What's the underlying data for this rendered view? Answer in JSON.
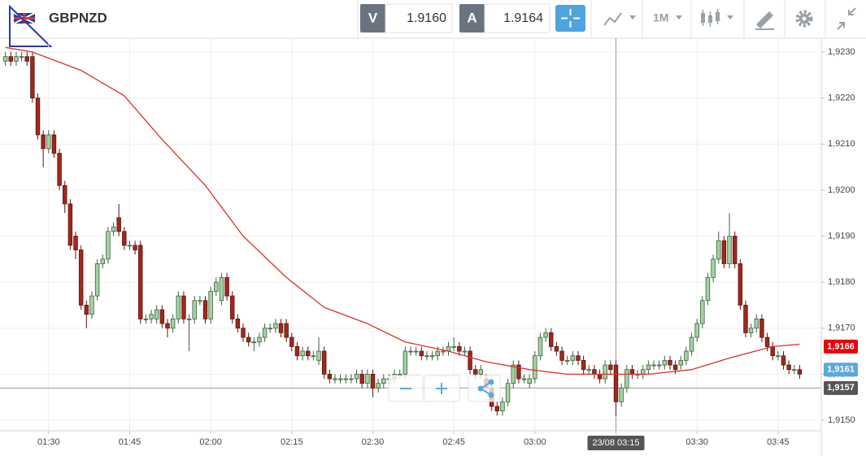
{
  "toolbar": {
    "symbol": "GBPNZD",
    "bid_label": "V",
    "bid": "1.9160",
    "ask_label": "A",
    "ask": "1.9164",
    "timeframe": "1M"
  },
  "chart_data": {
    "type": "candlestick",
    "up_color": "#a3d3a3",
    "down_color": "#a0281c",
    "xlim": [
      -1,
      151
    ],
    "ylim": [
      1.91477,
      1.9233
    ],
    "grid": true,
    "yticks": [
      {
        "value": 1.915,
        "label": "1,9150"
      },
      {
        "value": 1.916,
        "label": "1,9160"
      },
      {
        "value": 1.917,
        "label": "1,9170"
      },
      {
        "value": 1.918,
        "label": "1,9180"
      },
      {
        "value": 1.919,
        "label": "1,9190"
      },
      {
        "value": 1.92,
        "label": "1,9200"
      },
      {
        "value": 1.921,
        "label": "1,9210"
      },
      {
        "value": 1.922,
        "label": "1,9220"
      },
      {
        "value": 1.923,
        "label": "1,9230"
      }
    ],
    "xticks": [
      {
        "value": 8,
        "label": "01:30"
      },
      {
        "value": 23,
        "label": "01:45"
      },
      {
        "value": 38,
        "label": "02:00"
      },
      {
        "value": 53,
        "label": "02:15"
      },
      {
        "value": 68,
        "label": "02:30"
      },
      {
        "value": 83,
        "label": "02:45"
      },
      {
        "value": 98,
        "label": "03:00"
      },
      {
        "value": 113,
        "label": "03:15"
      },
      {
        "value": 128,
        "label": "03:30"
      },
      {
        "value": 143,
        "label": "03:45"
      }
    ],
    "open": [
      1.9228,
      1.9229,
      1.9228,
      1.9229,
      1.9229,
      1.9229,
      1.922,
      1.9212,
      1.9209,
      1.9212,
      1.9208,
      1.9201,
      1.9197,
      1.919,
      1.9187,
      1.9175,
      1.9173,
      1.9177,
      1.9184,
      1.9185,
      1.9191,
      1.9194,
      1.9191,
      1.9188,
      1.9188,
      1.9188,
      1.9172,
      1.9172,
      1.9172,
      1.9174,
      1.9171,
      1.917,
      1.9172,
      1.9177,
      1.9172,
      1.9172,
      1.9176,
      1.9176,
      1.9172,
      1.9178,
      1.9176,
      1.9181,
      1.9177,
      1.9172,
      1.917,
      1.9168,
      1.9167,
      1.9167,
      1.9168,
      1.917,
      1.917,
      1.9171,
      1.9171,
      1.9168,
      1.9166,
      1.9164,
      1.9165,
      1.9164,
      1.9163,
      1.9165,
      1.916,
      1.9159,
      1.9159,
      1.9159,
      1.9159,
      1.9159,
      1.916,
      1.9158,
      1.916,
      1.9157,
      1.9158,
      1.9159,
      1.9159,
      1.916,
      1.916,
      1.9165,
      1.9165,
      1.9165,
      1.9164,
      1.9164,
      1.9164,
      1.9165,
      1.9165,
      1.9166,
      1.9166,
      1.9165,
      1.9165,
      1.9161,
      1.916,
      1.9159,
      1.9157,
      1.9153,
      1.9152,
      1.9154,
      1.9158,
      1.9162,
      1.9159,
      1.9158,
      1.9159,
      1.9164,
      1.9168,
      1.9169,
      1.9166,
      1.9165,
      1.9163,
      1.9163,
      1.9164,
      1.9163,
      1.9161,
      1.9161,
      1.916,
      1.9159,
      1.9162,
      1.9162,
      1.9154,
      1.9157,
      1.9161,
      1.916,
      1.916,
      1.9161,
      1.9162,
      1.9162,
      1.9162,
      1.9163,
      1.9162,
      1.9162,
      1.9163,
      1.9165,
      1.9168,
      1.9171,
      1.9176,
      1.9181,
      1.9185,
      1.9189,
      1.9184,
      1.919,
      1.9184,
      1.9175,
      1.9169,
      1.917,
      1.9172,
      1.9168,
      1.9166,
      1.9164,
      1.9164,
      1.9162,
      1.9161,
      1.9161
    ],
    "high": [
      1.923,
      1.923,
      1.923,
      1.923,
      1.923,
      1.923,
      1.9221,
      1.9213,
      1.9213,
      1.9213,
      1.9209,
      1.9202,
      1.9198,
      1.9191,
      1.9188,
      1.9176,
      1.9178,
      1.9185,
      1.9186,
      1.9192,
      1.9193,
      1.9197,
      1.9192,
      1.9189,
      1.9189,
      1.9189,
      1.9173,
      1.9174,
      1.9175,
      1.9175,
      1.9172,
      1.9173,
      1.9178,
      1.9178,
      1.9173,
      1.9177,
      1.9177,
      1.9177,
      1.9179,
      1.9181,
      1.9182,
      1.9182,
      1.9178,
      1.9173,
      1.9171,
      1.9169,
      1.9168,
      1.9169,
      1.9171,
      1.9171,
      1.9172,
      1.9172,
      1.9172,
      1.9169,
      1.9167,
      1.9166,
      1.9166,
      1.9165,
      1.9168,
      1.9166,
      1.9161,
      1.916,
      1.916,
      1.916,
      1.916,
      1.9161,
      1.9161,
      1.9161,
      1.9161,
      1.9159,
      1.916,
      1.916,
      1.9161,
      1.9161,
      1.9166,
      1.9166,
      1.9166,
      1.9166,
      1.9165,
      1.9165,
      1.9166,
      1.9166,
      1.9167,
      1.9168,
      1.9167,
      1.9166,
      1.9166,
      1.9162,
      1.9162,
      1.916,
      1.9158,
      1.9154,
      1.9155,
      1.9159,
      1.9163,
      1.9163,
      1.916,
      1.916,
      1.9165,
      1.9169,
      1.917,
      1.917,
      1.9167,
      1.9166,
      1.9164,
      1.9165,
      1.9165,
      1.9164,
      1.9162,
      1.9162,
      1.9161,
      1.9163,
      1.9163,
      1.9163,
      1.9158,
      1.9162,
      1.9162,
      1.9161,
      1.9162,
      1.9163,
      1.9163,
      1.9163,
      1.9164,
      1.9164,
      1.9163,
      1.9164,
      1.9166,
      1.9169,
      1.9172,
      1.9177,
      1.9182,
      1.9186,
      1.9191,
      1.919,
      1.9195,
      1.9191,
      1.9185,
      1.9176,
      1.9171,
      1.9173,
      1.9173,
      1.9169,
      1.9167,
      1.9165,
      1.9165,
      1.9163,
      1.9162,
      1.9162
    ],
    "low": [
      1.9227,
      1.9227,
      1.9227,
      1.9228,
      1.9227,
      1.9219,
      1.9211,
      1.9205,
      1.9208,
      1.9207,
      1.92,
      1.9195,
      1.9187,
      1.9185,
      1.9174,
      1.917,
      1.9172,
      1.9176,
      1.9183,
      1.9184,
      1.919,
      1.919,
      1.9187,
      1.9187,
      1.9186,
      1.9171,
      1.9171,
      1.9171,
      1.9171,
      1.917,
      1.9168,
      1.9169,
      1.9171,
      1.9171,
      1.9165,
      1.9171,
      1.9175,
      1.9171,
      1.9171,
      1.9177,
      1.9175,
      1.9176,
      1.9171,
      1.9169,
      1.9167,
      1.9166,
      1.9165,
      1.9166,
      1.9167,
      1.9169,
      1.9169,
      1.9168,
      1.9167,
      1.9165,
      1.9163,
      1.9163,
      1.9163,
      1.9163,
      1.9162,
      1.9159,
      1.9158,
      1.9158,
      1.9158,
      1.9158,
      1.9158,
      1.9158,
      1.9157,
      1.9157,
      1.9155,
      1.9156,
      1.9157,
      1.9158,
      1.9158,
      1.9159,
      1.9159,
      1.9164,
      1.9164,
      1.9163,
      1.9163,
      1.9163,
      1.9163,
      1.9164,
      1.9164,
      1.9165,
      1.9164,
      1.9164,
      1.916,
      1.9159,
      1.9159,
      1.9156,
      1.9152,
      1.9151,
      1.9151,
      1.9153,
      1.9157,
      1.9158,
      1.9158,
      1.9157,
      1.9158,
      1.9163,
      1.9167,
      1.9165,
      1.9164,
      1.9162,
      1.9162,
      1.9162,
      1.9162,
      1.916,
      1.916,
      1.9159,
      1.9158,
      1.9158,
      1.916,
      1.9151,
      1.9153,
      1.9156,
      1.9159,
      1.9159,
      1.9159,
      1.916,
      1.9161,
      1.9161,
      1.9161,
      1.9161,
      1.916,
      1.9161,
      1.9162,
      1.9164,
      1.9167,
      1.917,
      1.9175,
      1.918,
      1.9184,
      1.9183,
      1.9183,
      1.9183,
      1.9174,
      1.9168,
      1.9168,
      1.9169,
      1.9167,
      1.9165,
      1.9163,
      1.9163,
      1.9161,
      1.916,
      1.916,
      1.9159
    ],
    "close": [
      1.9229,
      1.9228,
      1.9229,
      1.9229,
      1.9228,
      1.922,
      1.9212,
      1.9209,
      1.9212,
      1.9208,
      1.9201,
      1.9197,
      1.9188,
      1.9187,
      1.9175,
      1.9173,
      1.9177,
      1.9184,
      1.9185,
      1.9191,
      1.9192,
      1.9191,
      1.9188,
      1.9188,
      1.9187,
      1.9172,
      1.9172,
      1.9173,
      1.9174,
      1.9171,
      1.917,
      1.9172,
      1.9177,
      1.9172,
      1.9172,
      1.9176,
      1.9176,
      1.9172,
      1.9178,
      1.918,
      1.9181,
      1.9177,
      1.9172,
      1.917,
      1.9168,
      1.9167,
      1.9167,
      1.9168,
      1.917,
      1.917,
      1.9171,
      1.9169,
      1.9168,
      1.9166,
      1.9164,
      1.9165,
      1.9164,
      1.9164,
      1.9165,
      1.916,
      1.9159,
      1.9159,
      1.9159,
      1.9159,
      1.9159,
      1.916,
      1.9158,
      1.916,
      1.9157,
      1.9158,
      1.9159,
      1.9159,
      1.916,
      1.916,
      1.9165,
      1.9165,
      1.9165,
      1.9164,
      1.9164,
      1.9164,
      1.9165,
      1.9165,
      1.9166,
      1.9166,
      1.9165,
      1.9165,
      1.9161,
      1.916,
      1.9161,
      1.9157,
      1.9153,
      1.9152,
      1.9154,
      1.9158,
      1.9162,
      1.9159,
      1.9159,
      1.9159,
      1.9164,
      1.9168,
      1.9169,
      1.9166,
      1.9165,
      1.9163,
      1.9163,
      1.9164,
      1.9163,
      1.9161,
      1.9161,
      1.916,
      1.9159,
      1.9162,
      1.9161,
      1.9154,
      1.9157,
      1.9161,
      1.916,
      1.916,
      1.9161,
      1.9162,
      1.9162,
      1.9162,
      1.9163,
      1.9162,
      1.9161,
      1.9163,
      1.9165,
      1.9168,
      1.9171,
      1.9176,
      1.9181,
      1.9185,
      1.9189,
      1.9184,
      1.919,
      1.9184,
      1.9175,
      1.9169,
      1.917,
      1.9172,
      1.9168,
      1.9166,
      1.9164,
      1.9164,
      1.9162,
      1.9161,
      1.9161,
      1.916
    ],
    "ma": {
      "color": "#d9302c",
      "x": [
        0,
        5,
        14,
        22,
        29,
        37,
        44,
        52,
        59,
        67,
        74,
        82,
        89,
        97,
        104,
        112,
        119,
        127,
        134,
        142,
        147
      ],
      "values": [
        1.9231,
        1.923,
        1.9226,
        1.92205,
        1.9211,
        1.9201,
        1.919,
        1.9181,
        1.91745,
        1.9171,
        1.9167,
        1.9165,
        1.91627,
        1.9161,
        1.916,
        1.916,
        1.916,
        1.9161,
        1.91635,
        1.9166,
        1.91665
      ]
    },
    "price_tags": [
      {
        "value": 1.9166,
        "label": "1,9166",
        "color": "#e8000b"
      },
      {
        "value": 1.9161,
        "label": "1,9161",
        "color": "#5aa9dc"
      }
    ],
    "crosshair": {
      "x": 113,
      "x_label": "23/08 03:15",
      "y": 1.9157,
      "y_label": "1,9157"
    }
  }
}
